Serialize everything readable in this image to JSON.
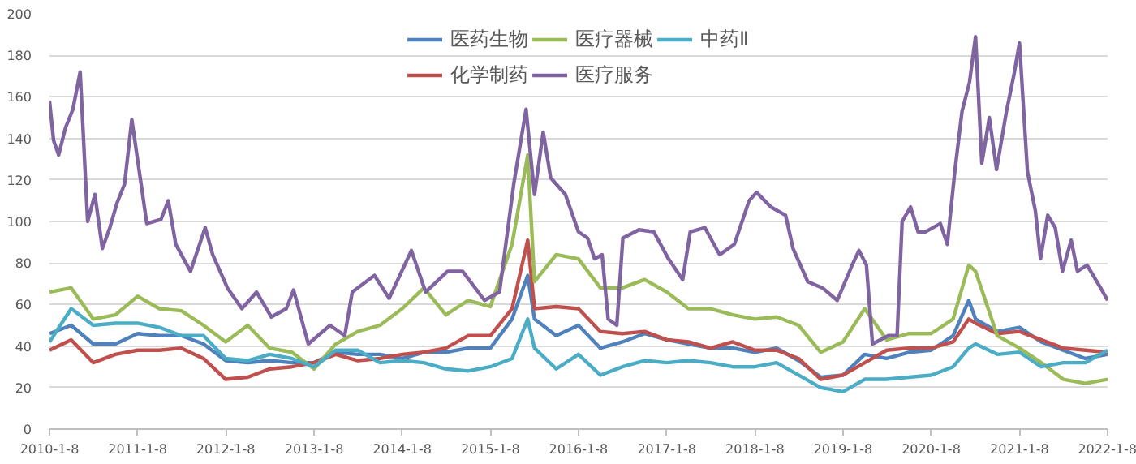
{
  "chart_data": {
    "type": "line",
    "x": [
      "2010-01-08",
      "2010-04-08",
      "2010-07-08",
      "2010-10-08",
      "2011-01-08",
      "2011-04-08",
      "2011-07-08",
      "2011-10-08",
      "2012-01-08",
      "2012-04-08",
      "2012-07-08",
      "2012-10-08",
      "2013-01-08",
      "2013-04-08",
      "2013-07-08",
      "2013-10-08",
      "2014-01-08",
      "2014-04-08",
      "2014-07-08",
      "2014-10-08",
      "2015-01-08",
      "2015-04-08",
      "2015-06-12",
      "2015-07-10",
      "2015-10-08",
      "2016-01-08",
      "2016-04-08",
      "2016-07-08",
      "2016-10-08",
      "2017-01-08",
      "2017-04-08",
      "2017-07-08",
      "2017-10-08",
      "2018-01-08",
      "2018-04-08",
      "2018-07-08",
      "2018-10-08",
      "2019-01-08",
      "2019-04-08",
      "2019-07-08",
      "2019-10-08",
      "2020-01-08",
      "2020-04-08",
      "2020-06-12",
      "2020-07-10",
      "2020-10-08",
      "2021-01-08",
      "2021-04-08",
      "2021-07-08",
      "2021-10-08",
      "2022-01-08"
    ],
    "series": [
      {
        "name": "医药生物",
        "color": "#4f81bd",
        "values": [
          46,
          50,
          41,
          41,
          46,
          45,
          45,
          41,
          33,
          32,
          33,
          32,
          32,
          37,
          36,
          36,
          34,
          37,
          37,
          39,
          39,
          53,
          74,
          53,
          45,
          50,
          39,
          42,
          46,
          43,
          41,
          39,
          39,
          37,
          39,
          33,
          25,
          26,
          36,
          34,
          37,
          38,
          45,
          62,
          53,
          47,
          49,
          42,
          38,
          34,
          36
        ]
      },
      {
        "name": "化学制药",
        "color": "#c0504d",
        "values": [
          38,
          43,
          32,
          36,
          38,
          38,
          39,
          34,
          24,
          25,
          29,
          30,
          32,
          36,
          33,
          34,
          36,
          37,
          39,
          45,
          45,
          58,
          91,
          58,
          59,
          58,
          47,
          46,
          47,
          43,
          42,
          39,
          42,
          38,
          38,
          34,
          24,
          26,
          32,
          38,
          39,
          39,
          42,
          53,
          51,
          46,
          47,
          43,
          39,
          38,
          37
        ]
      },
      {
        "name": "医疗器械",
        "color": "#9bbb59",
        "values": [
          66,
          68,
          53,
          55,
          64,
          58,
          57,
          50,
          42,
          50,
          39,
          37,
          29,
          41,
          47,
          50,
          58,
          68,
          55,
          62,
          59,
          89,
          132,
          71,
          84,
          82,
          68,
          68,
          72,
          66,
          58,
          58,
          55,
          53,
          54,
          50,
          37,
          42,
          58,
          43,
          46,
          46,
          53,
          79,
          76,
          45,
          39,
          32,
          24,
          22,
          24
        ]
      },
      {
        "name": "医疗服务",
        "color": "#8064a2",
        "x": [
          "2010-01-08",
          "2010-01-25",
          "2010-02-15",
          "2010-03-15",
          "2010-04-15",
          "2010-05-15",
          "2010-06-15",
          "2010-07-15",
          "2010-08-15",
          "2010-09-15",
          "2010-10-15",
          "2010-11-15",
          "2010-12-15",
          "2011-02-15",
          "2011-04-15",
          "2011-05-15",
          "2011-06-15",
          "2011-08-15",
          "2011-10-15",
          "2011-11-15",
          "2012-01-15",
          "2012-03-15",
          "2012-05-15",
          "2012-07-15",
          "2012-09-15",
          "2012-10-15",
          "2012-12-15",
          "2013-03-15",
          "2013-05-15",
          "2013-06-15",
          "2013-09-15",
          "2013-11-15",
          "2014-02-15",
          "2014-04-15",
          "2014-07-15",
          "2014-09-15",
          "2014-12-15",
          "2015-02-15",
          "2015-04-15",
          "2015-06-05",
          "2015-07-10",
          "2015-08-15",
          "2015-09-15",
          "2015-11-15",
          "2015-12-15",
          "2016-01-08",
          "2016-02-15",
          "2016-03-15",
          "2016-04-15",
          "2016-05-10",
          "2016-06-15",
          "2016-07-10",
          "2016-09-15",
          "2016-11-15",
          "2017-01-15",
          "2017-03-15",
          "2017-04-15",
          "2017-06-15",
          "2017-08-15",
          "2017-10-15",
          "2017-12-15",
          "2018-01-15",
          "2018-03-15",
          "2018-05-15",
          "2018-06-15",
          "2018-08-15",
          "2018-10-15",
          "2018-12-15",
          "2019-02-15",
          "2019-03-15",
          "2019-04-15",
          "2019-05-10",
          "2019-07-15",
          "2019-08-20",
          "2019-09-10",
          "2019-10-15",
          "2019-11-15",
          "2019-12-15",
          "2020-02-15",
          "2020-03-15",
          "2020-04-15",
          "2020-05-15",
          "2020-06-15",
          "2020-07-10",
          "2020-08-05",
          "2020-09-05",
          "2020-10-05",
          "2020-11-15",
          "2020-12-15",
          "2021-01-08",
          "2021-02-10",
          "2021-03-15",
          "2021-04-05",
          "2021-05-05",
          "2021-06-05",
          "2021-07-05",
          "2021-08-10",
          "2021-09-05",
          "2021-10-15",
          "2021-12-10",
          "2022-01-08"
        ],
        "values": [
          158,
          139,
          132,
          145,
          154,
          172,
          100,
          113,
          87,
          97,
          109,
          118,
          149,
          99,
          101,
          110,
          89,
          76,
          97,
          84,
          68,
          58,
          66,
          54,
          58,
          67,
          41,
          50,
          45,
          66,
          74,
          63,
          86,
          66,
          76,
          76,
          62,
          66,
          118,
          154,
          113,
          143,
          121,
          113,
          103,
          95,
          92,
          82,
          84,
          53,
          50,
          92,
          96,
          95,
          82,
          72,
          95,
          97,
          84,
          89,
          110,
          114,
          107,
          103,
          87,
          71,
          68,
          62,
          79,
          86,
          79,
          41,
          45,
          45,
          100,
          107,
          95,
          95,
          99,
          89,
          124,
          153,
          167,
          189,
          128,
          150,
          125,
          153,
          170,
          186,
          124,
          105,
          82,
          103,
          97,
          76,
          91,
          76,
          79,
          68,
          62
        ]
      },
      {
        "name": "中药Ⅱ",
        "color": "#4bacc6",
        "values": [
          42,
          58,
          50,
          51,
          51,
          49,
          45,
          45,
          34,
          33,
          36,
          34,
          30,
          38,
          38,
          32,
          33,
          32,
          29,
          28,
          30,
          34,
          53,
          39,
          29,
          36,
          26,
          30,
          33,
          32,
          33,
          32,
          30,
          30,
          32,
          26,
          20,
          18,
          24,
          24,
          25,
          26,
          30,
          39,
          41,
          36,
          37,
          30,
          32,
          32,
          38
        ]
      }
    ],
    "xlim": [
      "2010-01-08",
      "2022-01-08"
    ],
    "xticks": [
      {
        "value": "2010-01-08",
        "label": "2010-1-8"
      },
      {
        "value": "2011-01-08",
        "label": "2011-1-8"
      },
      {
        "value": "2012-01-08",
        "label": "2012-1-8"
      },
      {
        "value": "2013-01-08",
        "label": "2013-1-8"
      },
      {
        "value": "2014-01-08",
        "label": "2014-1-8"
      },
      {
        "value": "2015-01-08",
        "label": "2015-1-8"
      },
      {
        "value": "2016-01-08",
        "label": "2016-1-8"
      },
      {
        "value": "2017-01-08",
        "label": "2017-1-8"
      },
      {
        "value": "2018-01-08",
        "label": "2018-1-8"
      },
      {
        "value": "2019-01-08",
        "label": "2019-1-8"
      },
      {
        "value": "2020-01-08",
        "label": "2020-1-8"
      },
      {
        "value": "2021-01-08",
        "label": "2021-1-8"
      },
      {
        "value": "2022-01-08",
        "label": "2022-1-8"
      }
    ],
    "ylim": [
      0,
      200
    ],
    "yticks": [
      0,
      20,
      40,
      60,
      80,
      100,
      120,
      140,
      160,
      180,
      200
    ],
    "grid": "y",
    "legend": "top",
    "marker": "none",
    "line_style": "solid"
  }
}
